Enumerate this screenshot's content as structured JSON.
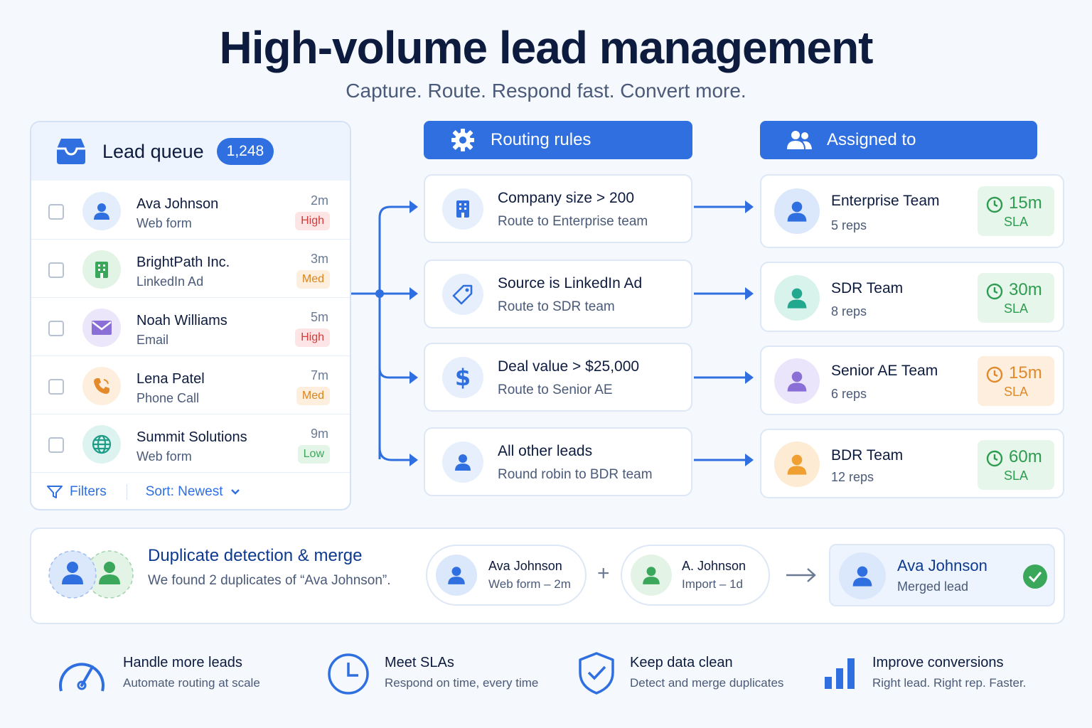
{
  "header": {
    "title": "High-volume lead management",
    "subtitle": "Capture. Route. Respond fast. Convert more."
  },
  "queue": {
    "title": "Lead queue",
    "count": "1,248",
    "leads": [
      {
        "name": "Ava Johnson",
        "source": "Web form",
        "time": "2m",
        "priority": "High",
        "icon": "person-icon"
      },
      {
        "name": "BrightPath Inc.",
        "source": "LinkedIn Ad",
        "time": "3m",
        "priority": "Med",
        "icon": "building-icon"
      },
      {
        "name": "Noah Williams",
        "source": "Email",
        "time": "5m",
        "priority": "High",
        "icon": "envelope-icon"
      },
      {
        "name": "Lena Patel",
        "source": "Phone Call",
        "time": "7m",
        "priority": "Med",
        "icon": "phone-icon"
      },
      {
        "name": "Summit Solutions",
        "source": "Web form",
        "time": "9m",
        "priority": "Low",
        "icon": "globe-icon"
      }
    ],
    "filters_label": "Filters",
    "sort_label": "Sort: Newest"
  },
  "routing": {
    "header": "Routing rules",
    "rules": [
      {
        "title": "Company size > 200",
        "sub": "Route to Enterprise team",
        "icon": "building-icon"
      },
      {
        "title": "Source is LinkedIn Ad",
        "sub": "Route to SDR team",
        "icon": "tag-icon"
      },
      {
        "title": "Deal value > $25,000",
        "sub": "Route to Senior AE",
        "icon": "dollar-icon"
      },
      {
        "title": "All other leads",
        "sub": "Round robin to BDR team",
        "icon": "person-icon"
      }
    ]
  },
  "assigned": {
    "header": "Assigned to",
    "teams": [
      {
        "name": "Enterprise Team",
        "reps": "5 reps",
        "sla_time": "15m",
        "sla_label": "SLA",
        "color": "#2f6fe0"
      },
      {
        "name": "SDR Team",
        "reps": "8 reps",
        "sla_time": "30m",
        "sla_label": "SLA",
        "color": "#21a88f"
      },
      {
        "name": "Senior AE Team",
        "reps": "6 reps",
        "sla_time": "15m",
        "sla_label": "SLA",
        "color": "#8a6fd6"
      },
      {
        "name": "BDR Team",
        "reps": "12 reps",
        "sla_time": "60m",
        "sla_label": "SLA",
        "color": "#f0a030"
      }
    ]
  },
  "duplicates": {
    "title": "Duplicate detection & merge",
    "sub": "We found 2 duplicates of “Ava Johnson”.",
    "record_a": {
      "name": "Ava Johnson",
      "meta": "Web form – 2m"
    },
    "plus": "+",
    "record_b": {
      "name": "A. Johnson",
      "meta": "Import – 1d"
    },
    "merged": {
      "name": "Ava Johnson",
      "meta": "Merged lead"
    }
  },
  "features": [
    {
      "title": "Handle more leads",
      "sub": "Automate routing at scale",
      "icon": "gauge-icon"
    },
    {
      "title": "Meet SLAs",
      "sub": "Respond on time, every time",
      "icon": "clock-icon"
    },
    {
      "title": "Keep data clean",
      "sub": "Detect and merge duplicates",
      "icon": "shield-check-icon"
    },
    {
      "title": "Improve conversions",
      "sub": "Right lead. Right rep. Faster.",
      "icon": "bar-chart-icon"
    }
  ],
  "colors": {
    "accent": "#2f6fe0",
    "high": "#d23c3c",
    "med": "#d98420",
    "low": "#3aa75a"
  }
}
